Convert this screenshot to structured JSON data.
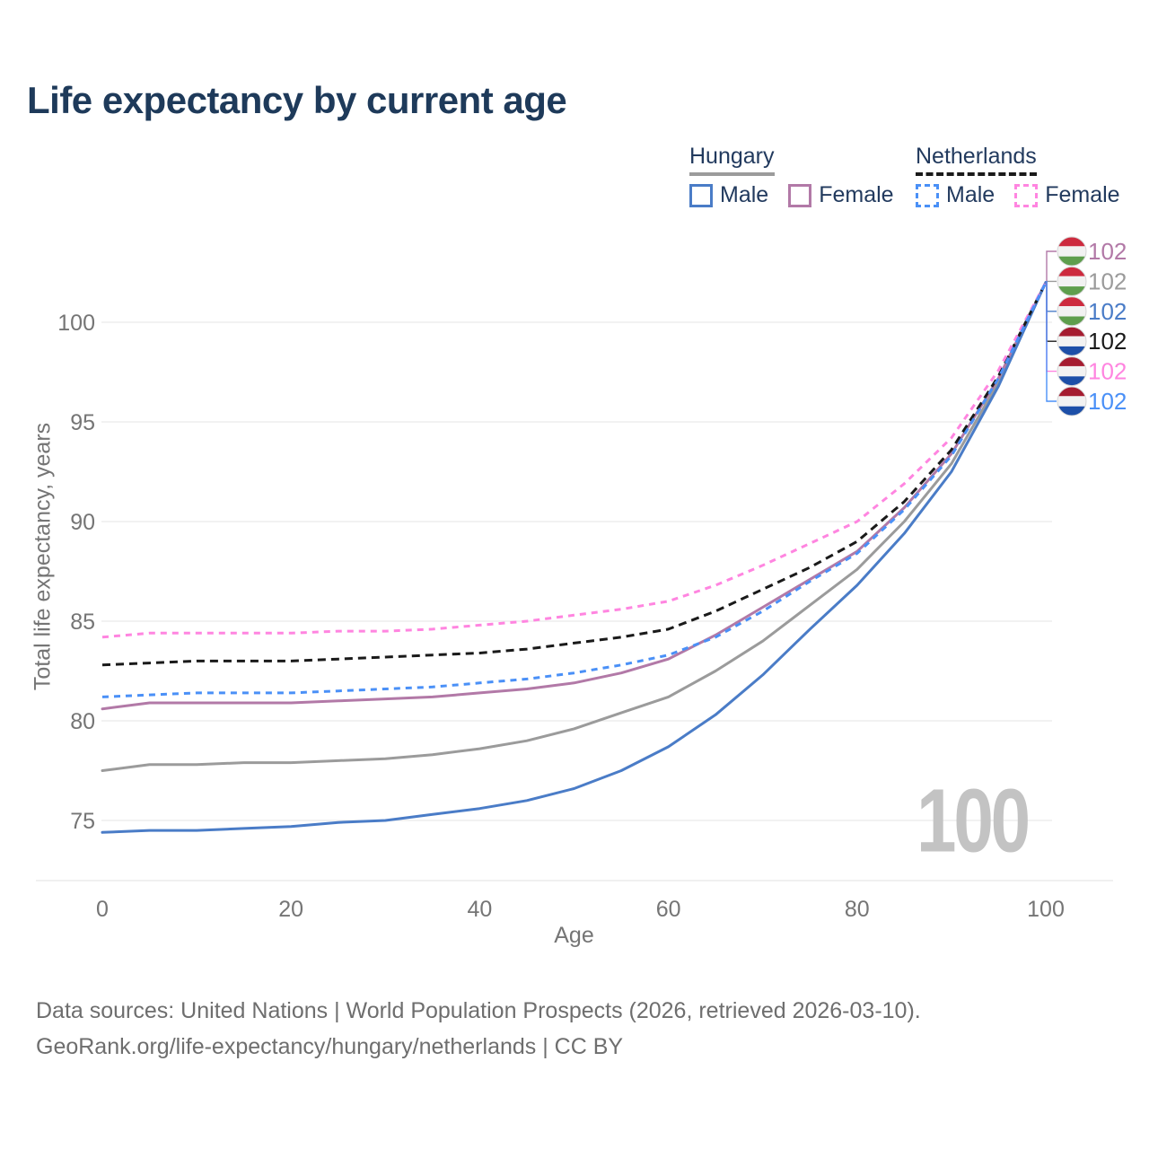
{
  "title": "Life expectancy by current age",
  "legend": {
    "groups": [
      {
        "id": "hungary",
        "name": "Hungary",
        "line_style": "solid",
        "line_color": "#9b9b9b",
        "items": [
          {
            "id": "hungary-male",
            "label": "Male",
            "color": "#4a7cc7",
            "swatch_style": "solid"
          },
          {
            "id": "hungary-female",
            "label": "Female",
            "color": "#b279a7",
            "swatch_style": "solid"
          }
        ]
      },
      {
        "id": "netherlands",
        "name": "Netherlands",
        "line_style": "dashed",
        "line_color": "#1a1a1a",
        "items": [
          {
            "id": "netherlands-male",
            "label": "Male",
            "color": "#4a90f7",
            "swatch_style": "dashed"
          },
          {
            "id": "netherlands-female",
            "label": "Female",
            "color": "#ff85e0",
            "swatch_style": "dashed"
          }
        ]
      }
    ]
  },
  "chart_data": {
    "type": "line",
    "title": "Life expectancy by current age",
    "xlabel": "Age",
    "ylabel": "Total life expectancy, years",
    "xlim": [
      0,
      100
    ],
    "ylim": [
      73,
      103
    ],
    "x_ticks": [
      0,
      20,
      40,
      60,
      80,
      100
    ],
    "y_ticks": [
      75,
      80,
      85,
      90,
      95,
      100
    ],
    "grid": "horizontal",
    "legend_position": "top-right",
    "x": [
      0,
      5,
      10,
      15,
      20,
      25,
      30,
      35,
      40,
      45,
      50,
      55,
      60,
      65,
      70,
      75,
      80,
      85,
      90,
      95,
      100
    ],
    "series": [
      {
        "id": "hungary-total",
        "name": "Hungary (both sexes)",
        "country": "hu",
        "color": "#9b9b9b",
        "dash": null,
        "values": [
          77.5,
          77.8,
          77.8,
          77.9,
          77.9,
          78.0,
          78.1,
          78.3,
          78.6,
          79.0,
          79.6,
          80.4,
          81.2,
          82.5,
          84.0,
          85.8,
          87.6,
          90.0,
          92.9,
          97.0,
          102
        ]
      },
      {
        "id": "hungary-female",
        "name": "Hungary Female",
        "country": "hu",
        "color": "#b279a7",
        "dash": null,
        "values": [
          80.6,
          80.9,
          80.9,
          80.9,
          80.9,
          81.0,
          81.1,
          81.2,
          81.4,
          81.6,
          81.9,
          82.4,
          83.1,
          84.3,
          85.7,
          87.1,
          88.5,
          90.7,
          93.4,
          97.2,
          102
        ]
      },
      {
        "id": "hungary-male",
        "name": "Hungary Male",
        "country": "hu",
        "color": "#4a7cc7",
        "dash": null,
        "values": [
          74.4,
          74.5,
          74.5,
          74.6,
          74.7,
          74.9,
          75.0,
          75.3,
          75.6,
          76.0,
          76.6,
          77.5,
          78.7,
          80.3,
          82.3,
          84.6,
          86.8,
          89.4,
          92.5,
          96.8,
          102
        ]
      },
      {
        "id": "netherlands-total",
        "name": "Netherlands (both sexes)",
        "country": "nl",
        "color": "#1a1a1a",
        "dash": "9 6",
        "values": [
          82.8,
          82.9,
          83.0,
          83.0,
          83.0,
          83.1,
          83.2,
          83.3,
          83.4,
          83.6,
          83.9,
          84.2,
          84.6,
          85.5,
          86.6,
          87.7,
          89.0,
          91.0,
          93.6,
          97.3,
          102
        ]
      },
      {
        "id": "netherlands-female",
        "name": "Netherlands Female",
        "country": "nl",
        "color": "#ff85e0",
        "dash": "7 6",
        "values": [
          84.2,
          84.4,
          84.4,
          84.4,
          84.4,
          84.5,
          84.5,
          84.6,
          84.8,
          85.0,
          85.3,
          85.6,
          86.0,
          86.8,
          87.8,
          88.9,
          90.0,
          91.9,
          94.2,
          97.6,
          102
        ]
      },
      {
        "id": "netherlands-male",
        "name": "Netherlands Male",
        "country": "nl",
        "color": "#4a90f7",
        "dash": "7 6",
        "values": [
          81.2,
          81.3,
          81.4,
          81.4,
          81.4,
          81.5,
          81.6,
          81.7,
          81.9,
          82.1,
          82.4,
          82.8,
          83.3,
          84.2,
          85.5,
          87.0,
          88.4,
          90.6,
          93.3,
          97.2,
          102
        ]
      }
    ],
    "end_labels": [
      {
        "value": "102",
        "series": "Hungary Female",
        "flag": "hu",
        "color": "#b279a7"
      },
      {
        "value": "102",
        "series": "Hungary (both sexes)",
        "flag": "hu",
        "color": "#9b9b9b"
      },
      {
        "value": "102",
        "series": "Hungary Male",
        "flag": "hu",
        "color": "#4a7cc7"
      },
      {
        "value": "102",
        "series": "Netherlands (both sexes)",
        "flag": "nl",
        "color": "#1a1a1a"
      },
      {
        "value": "102",
        "series": "Netherlands Female",
        "flag": "nl",
        "color": "#ff85e0"
      },
      {
        "value": "102",
        "series": "Netherlands Male",
        "flag": "nl",
        "color": "#4a90f7"
      }
    ],
    "age_counter": "100"
  },
  "flag_colors": {
    "hu": [
      "#cd2a3e",
      "#f2f2f2",
      "#5e9e4d"
    ],
    "nl": [
      "#a51c30",
      "#f2f2f2",
      "#1d4fa8"
    ]
  },
  "style_colors": {
    "title_text": "#1e3a5a",
    "axis_text": "#757575",
    "gridline": "#e9e9e9",
    "watermark": "#c3c3c3",
    "footer_text": "#6e6e6e"
  },
  "footer": {
    "line1": "Data sources: United Nations | World Population Prospects (2026, retrieved 2026-03-10).",
    "line2": "GeoRank.org/life-expectancy/hungary/netherlands | CC BY"
  }
}
